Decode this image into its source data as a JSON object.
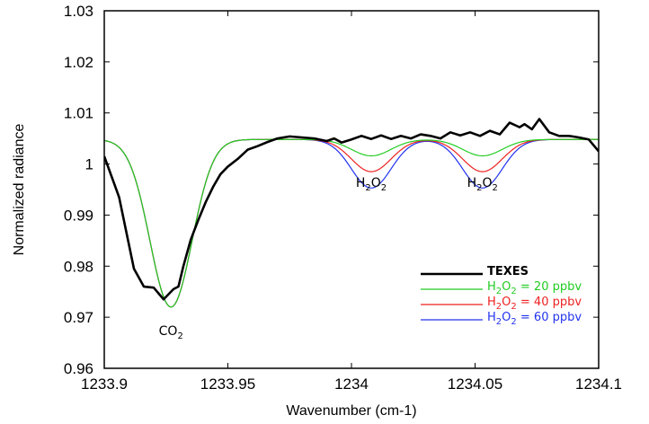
{
  "chart_data": {
    "type": "line",
    "title": "",
    "xlabel": "Wavenumber (cm-1)",
    "ylabel": "Normalized radiance",
    "xlim": [
      1233.9,
      1234.1
    ],
    "ylim": [
      0.96,
      1.03
    ],
    "x_ticks": [
      1233.9,
      1233.95,
      1234.0,
      1234.05,
      1234.1
    ],
    "x_tick_labels": [
      "1233.9",
      "1233.95",
      "1234",
      "1234.05",
      "1234.1"
    ],
    "y_ticks": [
      0.96,
      0.97,
      0.98,
      0.99,
      1.0,
      1.01,
      1.02,
      1.03
    ],
    "y_tick_labels": [
      "0.96",
      "0.97",
      "0.98",
      "0.99",
      "1",
      "1.01",
      "1.02",
      "1.03"
    ],
    "grid": false,
    "legend_position": "bottom-right",
    "legend": [
      {
        "label": "TEXES",
        "color": "#000000"
      },
      {
        "base": "H",
        "sub1": "2",
        "mid": "O",
        "sub2": "2",
        "rest": " = 20 ppbv",
        "color": "#22cc22"
      },
      {
        "base": "H",
        "sub1": "2",
        "mid": "O",
        "sub2": "2",
        "rest": " = 40 ppbv",
        "color": "#ee2222"
      },
      {
        "base": "H",
        "sub1": "2",
        "mid": "O",
        "sub2": "2",
        "rest": " = 60 ppbv",
        "color": "#2233ee"
      }
    ],
    "annotations": [
      {
        "base": "CO",
        "sub1": "2",
        "mid": "",
        "sub2": "",
        "x": 1233.927,
        "y": 0.9665
      },
      {
        "base": "H",
        "sub1": "2",
        "mid": "O",
        "sub2": "2",
        "x": 1234.008,
        "y": 0.9955
      },
      {
        "base": "H",
        "sub1": "2",
        "mid": "O",
        "sub2": "2",
        "x": 1234.053,
        "y": 0.9955
      }
    ],
    "series": [
      {
        "name": "TEXES",
        "color": "#000000",
        "x": [
          1233.9,
          1233.906,
          1233.912,
          1233.916,
          1233.92,
          1233.924,
          1233.928,
          1233.93,
          1233.932,
          1233.935,
          1233.938,
          1233.941,
          1233.944,
          1233.947,
          1233.95,
          1233.954,
          1233.958,
          1233.962,
          1233.966,
          1233.97,
          1233.975,
          1233.98,
          1233.985,
          1233.99,
          1233.993,
          1233.996,
          1234.0,
          1234.004,
          1234.008,
          1234.012,
          1234.016,
          1234.02,
          1234.024,
          1234.028,
          1234.032,
          1234.036,
          1234.04,
          1234.044,
          1234.048,
          1234.052,
          1234.056,
          1234.06,
          1234.064,
          1234.068,
          1234.07,
          1234.073,
          1234.076,
          1234.08,
          1234.084,
          1234.088,
          1234.092,
          1234.096,
          1234.1
        ],
        "y": [
          1.0015,
          0.9935,
          0.9795,
          0.976,
          0.9758,
          0.9735,
          0.9755,
          0.976,
          0.98,
          0.9852,
          0.989,
          0.9925,
          0.9955,
          0.998,
          0.9995,
          1.001,
          1.0028,
          1.0035,
          1.0043,
          1.005,
          1.0054,
          1.0052,
          1.005,
          1.0045,
          1.005,
          1.0042,
          1.0048,
          1.0055,
          1.0049,
          1.0056,
          1.0049,
          1.0055,
          1.005,
          1.0058,
          1.0055,
          1.005,
          1.0062,
          1.0056,
          1.0062,
          1.0055,
          1.0065,
          1.0058,
          1.0081,
          1.0072,
          1.0078,
          1.0068,
          1.0088,
          1.0062,
          1.0055,
          1.0055,
          1.0052,
          1.0048,
          1.0025
        ]
      },
      {
        "name": "H2O2 = 20 ppbv",
        "color": "#22cc22",
        "model": {
          "baseline": 1.0048,
          "dips": [
            [
              1233.927,
              0.0328,
              0.0085
            ],
            [
              1234.008,
              0.0032,
              0.008
            ],
            [
              1234.053,
              0.0032,
              0.008
            ]
          ]
        }
      },
      {
        "name": "H2O2 = 40 ppbv",
        "color": "#ee2222",
        "model": {
          "baseline": 1.0048,
          "dips": [
            [
              1233.927,
              0.0328,
              0.0085
            ],
            [
              1234.008,
              0.0063,
              0.008
            ],
            [
              1234.053,
              0.0063,
              0.008
            ]
          ]
        }
      },
      {
        "name": "H2O2 = 60 ppbv",
        "color": "#2233ee",
        "model": {
          "baseline": 1.0048,
          "dips": [
            [
              1233.927,
              0.0328,
              0.0085
            ],
            [
              1234.008,
              0.0095,
              0.008
            ],
            [
              1234.053,
              0.0095,
              0.008
            ]
          ]
        }
      }
    ]
  }
}
